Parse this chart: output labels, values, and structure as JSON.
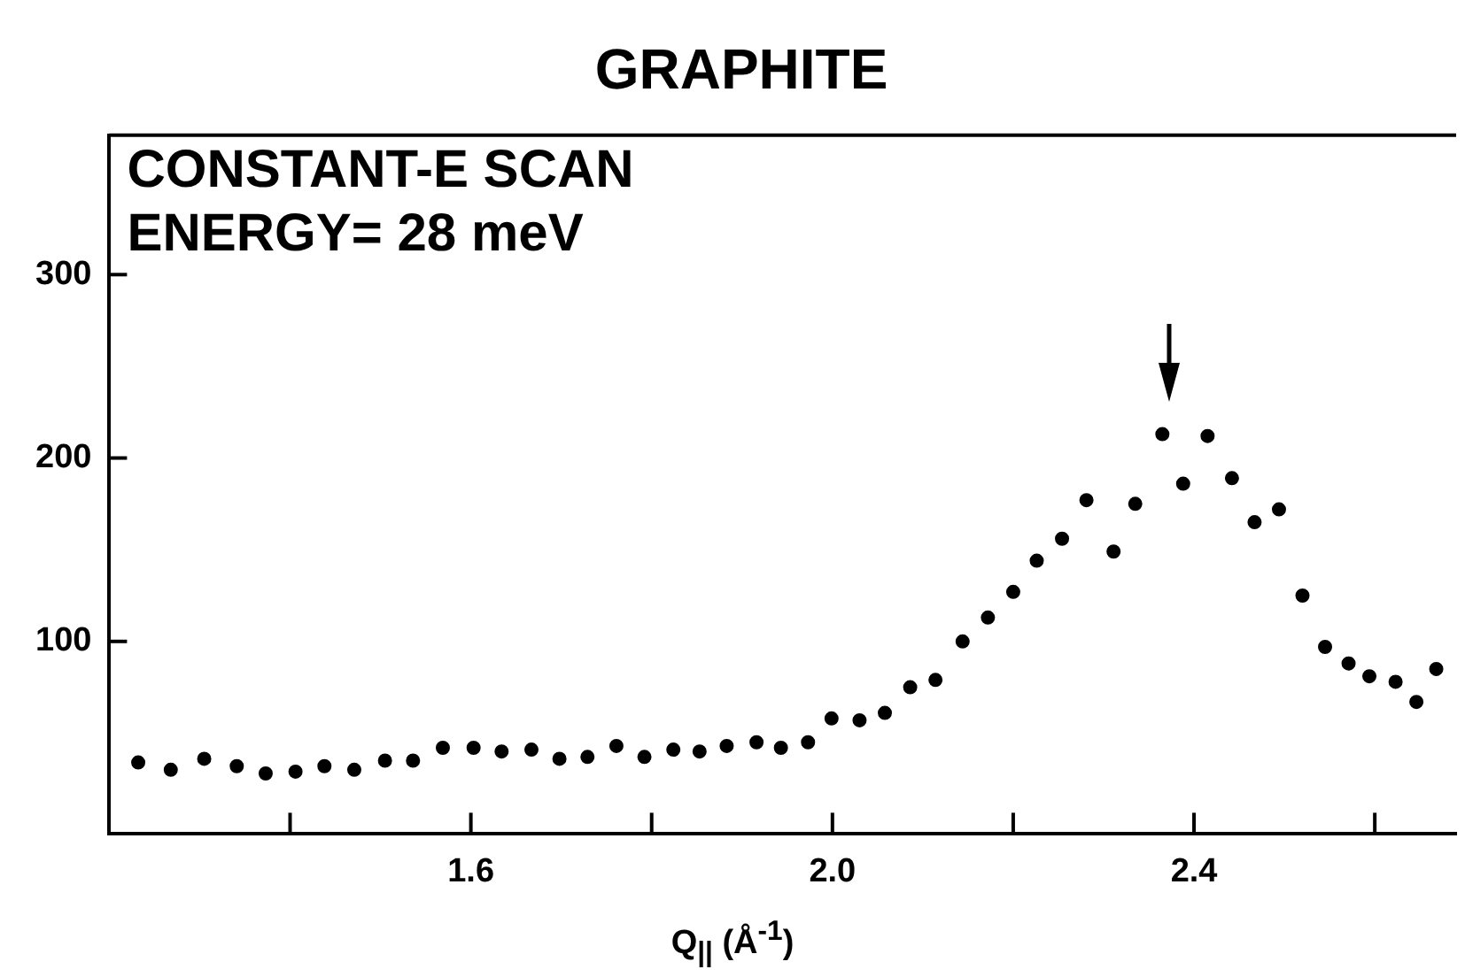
{
  "chart_data": {
    "type": "scatter",
    "title": "GRAPHITE",
    "xlabel": "Q$_{||}$ (Å$^{-1}$)",
    "annotations": [
      "CONSTANT-E SCAN",
      "ENERGY= 28 meV"
    ],
    "xlim": [
      1.2,
      2.69
    ],
    "ylim": [
      -5,
      376
    ],
    "xticks": [
      {
        "value": 1.4,
        "label": null
      },
      {
        "value": 1.6,
        "label": "1.6"
      },
      {
        "value": 1.8,
        "label": null
      },
      {
        "value": 2.0,
        "label": "2.0"
      },
      {
        "value": 2.2,
        "label": null
      },
      {
        "value": 2.4,
        "label": "2.4"
      },
      {
        "value": 2.6,
        "label": null
      }
    ],
    "yticks": [
      100,
      200,
      300
    ],
    "grid": false,
    "legend": false,
    "marker": "circle",
    "series": [
      {
        "color": "#000000",
        "x": [
          1.232,
          1.268,
          1.305,
          1.341,
          1.373,
          1.406,
          1.438,
          1.471,
          1.505,
          1.536,
          1.569,
          1.603,
          1.634,
          1.667,
          1.698,
          1.729,
          1.761,
          1.792,
          1.824,
          1.853,
          1.883,
          1.916,
          1.943,
          1.973,
          1.999,
          2.03,
          2.058,
          2.086,
          2.114,
          2.144,
          2.172,
          2.2,
          2.226,
          2.254,
          2.281,
          2.311,
          2.335,
          2.365,
          2.388,
          2.415,
          2.442,
          2.467,
          2.494,
          2.52,
          2.545,
          2.571,
          2.594,
          2.623,
          2.646,
          2.668
        ],
        "values": [
          34,
          30,
          36,
          32,
          28,
          29,
          32,
          30,
          35,
          35,
          42,
          42,
          40,
          41,
          36,
          37,
          43,
          37,
          41,
          40,
          43,
          45,
          42,
          45,
          58,
          57,
          61,
          75,
          79,
          100,
          113,
          127,
          144,
          156,
          177,
          149,
          175,
          213,
          186,
          212,
          189,
          165,
          172,
          125,
          97,
          88,
          81,
          78,
          67,
          85
        ]
      }
    ]
  }
}
